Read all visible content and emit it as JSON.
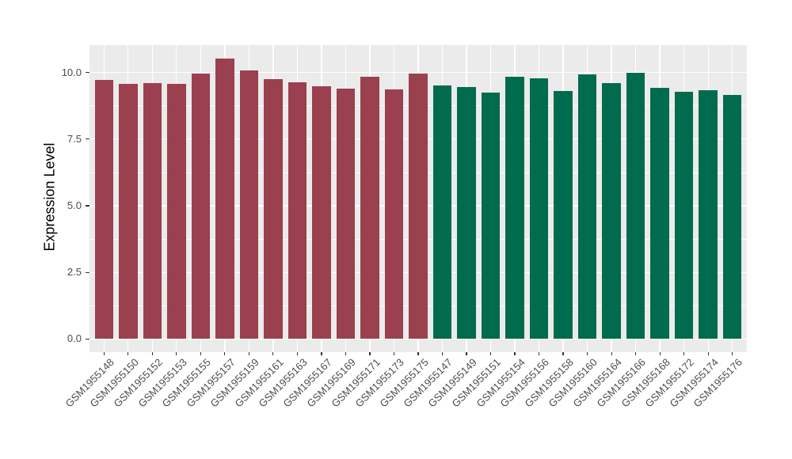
{
  "figure": {
    "background": "#FFFFFF"
  },
  "chart_data": {
    "type": "bar",
    "title": "",
    "xlabel": "",
    "ylabel": "Expression Level",
    "ylim": [
      0,
      11.05
    ],
    "yticks": [
      0,
      2.5,
      5,
      7.5,
      10
    ],
    "ytick_labels": [
      "0.0",
      "2.5",
      "5.0",
      "7.5",
      "10.0"
    ],
    "yminor": [
      1.25,
      3.75,
      6.25,
      8.75
    ],
    "grid": "on",
    "legend_position": "none",
    "panel_background": "#EBEBEB",
    "gridline_color": "#FFFFFF",
    "axis_text_color": "#4D4D4D",
    "bar_group_colors": {
      "maroon": "#9A404F",
      "green": "#006B4D"
    },
    "bars": [
      {
        "label": "GSM1955148",
        "value": 9.73,
        "group": "maroon"
      },
      {
        "label": "GSM1955150",
        "value": 9.58,
        "group": "maroon"
      },
      {
        "label": "GSM1955152",
        "value": 9.62,
        "group": "maroon"
      },
      {
        "label": "GSM1955153",
        "value": 9.59,
        "group": "maroon"
      },
      {
        "label": "GSM1955155",
        "value": 9.96,
        "group": "maroon"
      },
      {
        "label": "GSM1955157",
        "value": 10.52,
        "group": "maroon"
      },
      {
        "label": "GSM1955159",
        "value": 10.08,
        "group": "maroon"
      },
      {
        "label": "GSM1955161",
        "value": 9.76,
        "group": "maroon"
      },
      {
        "label": "GSM1955163",
        "value": 9.64,
        "group": "maroon"
      },
      {
        "label": "GSM1955167",
        "value": 9.48,
        "group": "maroon"
      },
      {
        "label": "GSM1955169",
        "value": 9.4,
        "group": "maroon"
      },
      {
        "label": "GSM1955171",
        "value": 9.84,
        "group": "maroon"
      },
      {
        "label": "GSM1955173",
        "value": 9.38,
        "group": "maroon"
      },
      {
        "label": "GSM1955175",
        "value": 9.97,
        "group": "maroon"
      },
      {
        "label": "GSM1955147",
        "value": 9.51,
        "group": "green"
      },
      {
        "label": "GSM1955149",
        "value": 9.46,
        "group": "green"
      },
      {
        "label": "GSM1955151",
        "value": 9.25,
        "group": "green"
      },
      {
        "label": "GSM1955154",
        "value": 9.83,
        "group": "green"
      },
      {
        "label": "GSM1955156",
        "value": 9.77,
        "group": "green"
      },
      {
        "label": "GSM1955158",
        "value": 9.32,
        "group": "green"
      },
      {
        "label": "GSM1955160",
        "value": 9.94,
        "group": "green"
      },
      {
        "label": "GSM1955164",
        "value": 9.62,
        "group": "green"
      },
      {
        "label": "GSM1955166",
        "value": 9.99,
        "group": "green"
      },
      {
        "label": "GSM1955168",
        "value": 9.43,
        "group": "green"
      },
      {
        "label": "GSM1955172",
        "value": 9.28,
        "group": "green"
      },
      {
        "label": "GSM1955174",
        "value": 9.35,
        "group": "green"
      },
      {
        "label": "GSM1955176",
        "value": 9.16,
        "group": "green"
      }
    ]
  }
}
